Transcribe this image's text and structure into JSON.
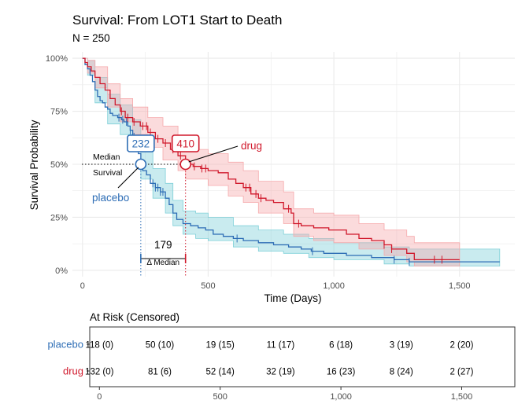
{
  "colors": {
    "placebo": "#2d6db5",
    "drug": "#d0182b",
    "placebo_band": "#7fd0d8",
    "drug_band": "#f6a9ab",
    "grid": "#ebebeb",
    "axis_text": "#4d4d4d"
  },
  "chart_data": {
    "type": "line",
    "subtype": "kaplan-meier",
    "title": "Survival: From LOT1 Start to Death",
    "subtitle": "N = 250",
    "xlabel": "Time (Days)",
    "ylabel": "Survival Probability",
    "xlim": [
      -40,
      1720
    ],
    "ylim": [
      -0.03,
      1.03
    ],
    "x_ticks": [
      0,
      500,
      1000,
      1500
    ],
    "x_tick_labels": [
      "0",
      "500",
      "1,000",
      "1,500"
    ],
    "y_ticks": [
      0,
      0.25,
      0.5,
      0.75,
      1.0
    ],
    "y_tick_labels": [
      "0%",
      "25%",
      "50%",
      "75%",
      "100%"
    ],
    "grid": true,
    "series": [
      {
        "name": "placebo",
        "curve": [
          [
            0,
            1.0
          ],
          [
            10,
            0.97
          ],
          [
            20,
            0.95
          ],
          [
            30,
            0.92
          ],
          [
            40,
            0.89
          ],
          [
            50,
            0.85
          ],
          [
            60,
            0.82
          ],
          [
            70,
            0.8
          ],
          [
            80,
            0.79
          ],
          [
            90,
            0.77
          ],
          [
            100,
            0.76
          ],
          [
            110,
            0.74
          ],
          [
            120,
            0.73
          ],
          [
            140,
            0.72
          ],
          [
            155,
            0.71
          ],
          [
            165,
            0.7
          ],
          [
            180,
            0.68
          ],
          [
            190,
            0.66
          ],
          [
            200,
            0.63
          ],
          [
            210,
            0.59
          ],
          [
            222,
            0.55
          ],
          [
            232,
            0.5
          ],
          [
            240,
            0.47
          ],
          [
            255,
            0.45
          ],
          [
            270,
            0.41
          ],
          [
            290,
            0.39
          ],
          [
            310,
            0.37
          ],
          [
            330,
            0.34
          ],
          [
            345,
            0.31
          ],
          [
            360,
            0.27
          ],
          [
            375,
            0.24
          ],
          [
            400,
            0.22
          ],
          [
            430,
            0.21
          ],
          [
            460,
            0.2
          ],
          [
            490,
            0.19
          ],
          [
            520,
            0.17
          ],
          [
            560,
            0.16
          ],
          [
            600,
            0.15
          ],
          [
            640,
            0.14
          ],
          [
            700,
            0.13
          ],
          [
            760,
            0.12
          ],
          [
            820,
            0.11
          ],
          [
            870,
            0.1
          ],
          [
            910,
            0.09
          ],
          [
            960,
            0.08
          ],
          [
            1050,
            0.07
          ],
          [
            1150,
            0.06
          ],
          [
            1240,
            0.05
          ],
          [
            1300,
            0.04
          ],
          [
            1660,
            0.04
          ]
        ],
        "lower": [
          [
            0,
            1.0
          ],
          [
            20,
            0.92
          ],
          [
            50,
            0.79
          ],
          [
            100,
            0.69
          ],
          [
            150,
            0.64
          ],
          [
            200,
            0.56
          ],
          [
            232,
            0.43
          ],
          [
            280,
            0.34
          ],
          [
            330,
            0.27
          ],
          [
            360,
            0.21
          ],
          [
            400,
            0.17
          ],
          [
            450,
            0.15
          ],
          [
            500,
            0.14
          ],
          [
            600,
            0.11
          ],
          [
            700,
            0.09
          ],
          [
            800,
            0.08
          ],
          [
            900,
            0.06
          ],
          [
            1000,
            0.05
          ],
          [
            1200,
            0.03
          ],
          [
            1300,
            0.02
          ],
          [
            1660,
            0.02
          ]
        ],
        "upper": [
          [
            0,
            1.0
          ],
          [
            20,
            0.99
          ],
          [
            50,
            0.91
          ],
          [
            100,
            0.83
          ],
          [
            150,
            0.78
          ],
          [
            200,
            0.71
          ],
          [
            232,
            0.57
          ],
          [
            280,
            0.48
          ],
          [
            330,
            0.41
          ],
          [
            360,
            0.33
          ],
          [
            400,
            0.28
          ],
          [
            450,
            0.27
          ],
          [
            500,
            0.25
          ],
          [
            600,
            0.21
          ],
          [
            700,
            0.19
          ],
          [
            800,
            0.17
          ],
          [
            900,
            0.15
          ],
          [
            1000,
            0.13
          ],
          [
            1200,
            0.11
          ],
          [
            1300,
            0.1
          ],
          [
            1660,
            0.1
          ]
        ],
        "censor_x": [
          145,
          160,
          175,
          190,
          205,
          280,
          290,
          300,
          310,
          320,
          615,
          915,
          1240,
          1300
        ]
      },
      {
        "name": "drug",
        "curve": [
          [
            0,
            1.0
          ],
          [
            10,
            0.98
          ],
          [
            20,
            0.96
          ],
          [
            35,
            0.94
          ],
          [
            50,
            0.91
          ],
          [
            70,
            0.88
          ],
          [
            90,
            0.85
          ],
          [
            110,
            0.81
          ],
          [
            130,
            0.78
          ],
          [
            150,
            0.75
          ],
          [
            170,
            0.72
          ],
          [
            200,
            0.7
          ],
          [
            230,
            0.68
          ],
          [
            260,
            0.65
          ],
          [
            290,
            0.62
          ],
          [
            320,
            0.6
          ],
          [
            350,
            0.57
          ],
          [
            380,
            0.54
          ],
          [
            410,
            0.5
          ],
          [
            440,
            0.49
          ],
          [
            470,
            0.48
          ],
          [
            500,
            0.47
          ],
          [
            540,
            0.46
          ],
          [
            580,
            0.43
          ],
          [
            610,
            0.41
          ],
          [
            640,
            0.39
          ],
          [
            670,
            0.36
          ],
          [
            700,
            0.34
          ],
          [
            730,
            0.33
          ],
          [
            760,
            0.32
          ],
          [
            800,
            0.29
          ],
          [
            830,
            0.27
          ],
          [
            840,
            0.22
          ],
          [
            870,
            0.21
          ],
          [
            920,
            0.2
          ],
          [
            980,
            0.19
          ],
          [
            1050,
            0.17
          ],
          [
            1100,
            0.15
          ],
          [
            1150,
            0.14
          ],
          [
            1200,
            0.12
          ],
          [
            1230,
            0.1
          ],
          [
            1290,
            0.08
          ],
          [
            1320,
            0.05
          ],
          [
            1500,
            0.05
          ]
        ],
        "lower": [
          [
            0,
            1.0
          ],
          [
            20,
            0.93
          ],
          [
            50,
            0.86
          ],
          [
            100,
            0.77
          ],
          [
            150,
            0.7
          ],
          [
            200,
            0.64
          ],
          [
            260,
            0.58
          ],
          [
            320,
            0.52
          ],
          [
            380,
            0.47
          ],
          [
            410,
            0.43
          ],
          [
            500,
            0.4
          ],
          [
            580,
            0.35
          ],
          [
            640,
            0.32
          ],
          [
            700,
            0.27
          ],
          [
            800,
            0.22
          ],
          [
            840,
            0.16
          ],
          [
            920,
            0.14
          ],
          [
            1000,
            0.13
          ],
          [
            1100,
            0.1
          ],
          [
            1200,
            0.07
          ],
          [
            1290,
            0.04
          ],
          [
            1320,
            0.02
          ],
          [
            1500,
            0.02
          ]
        ],
        "upper": [
          [
            0,
            1.0
          ],
          [
            20,
            0.99
          ],
          [
            50,
            0.96
          ],
          [
            100,
            0.88
          ],
          [
            150,
            0.81
          ],
          [
            200,
            0.77
          ],
          [
            260,
            0.72
          ],
          [
            320,
            0.68
          ],
          [
            380,
            0.61
          ],
          [
            410,
            0.57
          ],
          [
            500,
            0.55
          ],
          [
            580,
            0.51
          ],
          [
            640,
            0.47
          ],
          [
            700,
            0.42
          ],
          [
            800,
            0.37
          ],
          [
            840,
            0.29
          ],
          [
            920,
            0.27
          ],
          [
            1000,
            0.26
          ],
          [
            1100,
            0.22
          ],
          [
            1200,
            0.19
          ],
          [
            1290,
            0.16
          ],
          [
            1320,
            0.13
          ],
          [
            1500,
            0.13
          ]
        ],
        "censor_x": [
          155,
          180,
          205,
          240,
          255,
          270,
          300,
          330,
          360,
          390,
          445,
          475,
          490,
          650,
          665,
          690,
          710,
          820,
          860,
          1200,
          1230,
          1400,
          1430
        ]
      }
    ],
    "annotations": {
      "median_label": "Median\nSurvival",
      "median_line_y": 0.5,
      "medians": [
        {
          "series": "placebo",
          "x": 232,
          "label": "232"
        },
        {
          "series": "drug",
          "x": 410,
          "label": "410"
        }
      ],
      "delta_value": "179",
      "delta_label": "Δ Median",
      "curve_labels": [
        {
          "series": "placebo",
          "text": "placebo"
        },
        {
          "series": "drug",
          "text": "drug"
        }
      ]
    },
    "risk_table": {
      "title": "At Risk (Censored)",
      "times": [
        0,
        250,
        500,
        750,
        1000,
        1250,
        1500
      ],
      "x_ticks": [
        0,
        500,
        1000,
        1500
      ],
      "x_tick_labels": [
        "0",
        "500",
        "1,000",
        "1,500"
      ],
      "rows": [
        {
          "group": "placebo",
          "cells": [
            "118 (0)",
            "50 (10)",
            "19 (15)",
            "11 (17)",
            "6 (18)",
            "3 (19)",
            "2 (20)"
          ]
        },
        {
          "group": "drug",
          "cells": [
            "132 (0)",
            "81 (6)",
            "52 (14)",
            "32 (19)",
            "16 (23)",
            "8 (24)",
            "2 (27)"
          ]
        }
      ]
    }
  }
}
